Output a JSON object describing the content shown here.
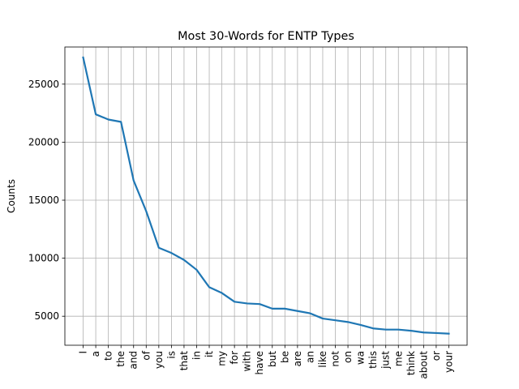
{
  "chart_data": {
    "type": "line",
    "title": "Most 30-Words for ENTP Types",
    "xlabel": "",
    "ylabel": "Counts",
    "categories": [
      "I",
      "a",
      "to",
      "the",
      "and",
      "of",
      "you",
      "is",
      "that",
      "in",
      "it",
      "my",
      "for",
      "with",
      "have",
      "but",
      "be",
      "are",
      "an",
      "like",
      "not",
      "on",
      "wa",
      "this",
      "just",
      "me",
      "think",
      "about",
      "or",
      "your"
    ],
    "series": [
      {
        "values": [
          27300,
          22400,
          21950,
          21750,
          16700,
          14050,
          10900,
          10450,
          9850,
          9000,
          7500,
          7000,
          6250,
          6100,
          6050,
          5650,
          5650,
          5450,
          5250,
          4800,
          4650,
          4500,
          4250,
          3950,
          3850,
          3850,
          3750,
          3600,
          3550,
          3500
        ]
      }
    ],
    "ylim": [
      2500,
      28200
    ],
    "yticks": [
      5000,
      10000,
      15000,
      20000,
      25000
    ],
    "grid": true,
    "line_color": "#1f77b4"
  }
}
